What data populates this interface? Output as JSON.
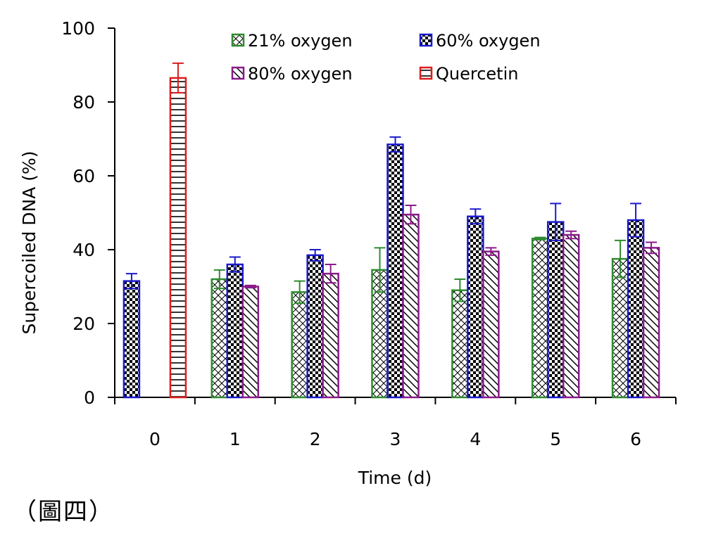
{
  "chart_data": {
    "type": "bar",
    "title": "",
    "xlabel": "Time (d)",
    "ylabel": "Supercoiled DNA (%)",
    "ylim": [
      0,
      100
    ],
    "yticks": [
      0,
      20,
      40,
      60,
      80,
      100
    ],
    "grid": false,
    "legend_position": "top",
    "categories": [
      "0",
      "1",
      "2",
      "3",
      "4",
      "5",
      "6"
    ],
    "series": [
      {
        "name": "21% oxygen",
        "color": "#2e8b2e",
        "pattern": "crosshatch",
        "values": [
          null,
          32,
          28.5,
          34.5,
          29,
          43,
          37.5
        ],
        "errors": [
          null,
          2.5,
          3,
          6,
          3,
          0.3,
          5
        ]
      },
      {
        "name": "60% oxygen",
        "color": "#1a1acc",
        "pattern": "checker",
        "values": [
          31.5,
          36,
          38.5,
          68.5,
          49,
          47.5,
          48
        ],
        "errors": [
          2,
          2,
          1.5,
          2,
          2,
          5,
          4.5
        ]
      },
      {
        "name": "80% oxygen",
        "color": "#8b1a8b",
        "pattern": "diagonal",
        "values": [
          null,
          30,
          33.5,
          49.5,
          39.5,
          44,
          40.5
        ],
        "errors": [
          null,
          0.3,
          2.5,
          2.5,
          1,
          1,
          1.5
        ]
      },
      {
        "name": "Quercetin",
        "color": "#dd1c1c",
        "pattern": "horizontal",
        "values": [
          86.5,
          null,
          null,
          null,
          null,
          null,
          null
        ],
        "errors": [
          4,
          null,
          null,
          null,
          null,
          null,
          null
        ]
      }
    ]
  },
  "caption": "（圖四）"
}
